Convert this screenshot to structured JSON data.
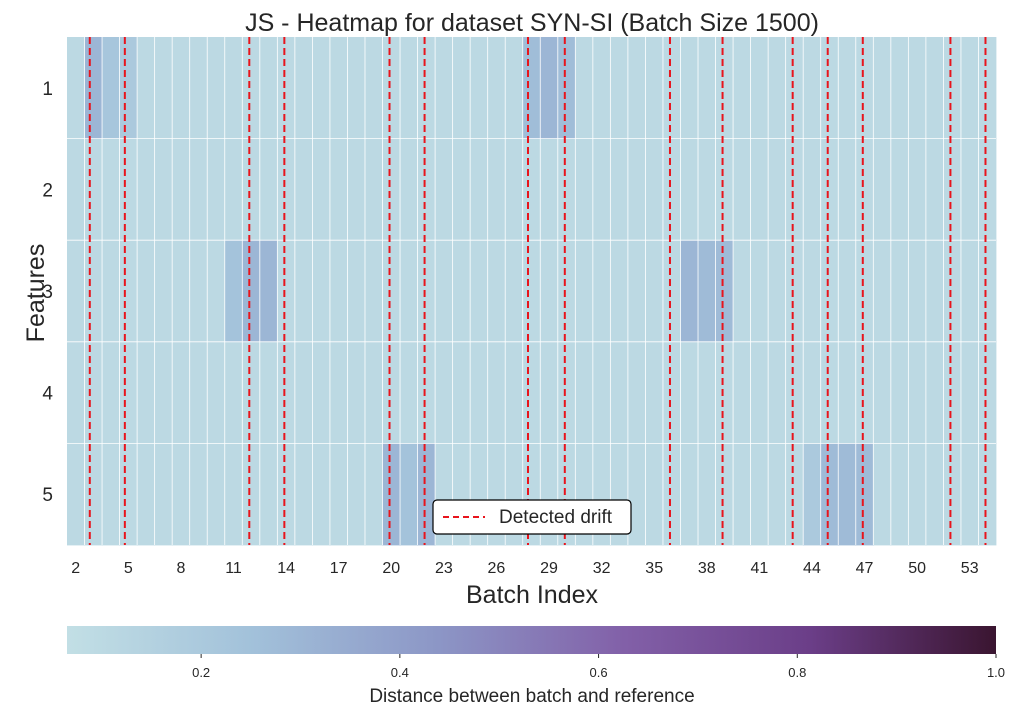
{
  "chart_data": {
    "type": "heatmap",
    "title": "JS - Heatmap for dataset SYN-SI (Batch Size 1500)",
    "xlabel": "Batch Index",
    "ylabel": "Features",
    "x_start": 2,
    "x_end": 54,
    "x_tick_labels": [
      "2",
      "5",
      "8",
      "11",
      "14",
      "17",
      "20",
      "23",
      "26",
      "29",
      "32",
      "35",
      "38",
      "41",
      "44",
      "47",
      "50",
      "53"
    ],
    "y_categories": [
      "1",
      "2",
      "3",
      "4",
      "5"
    ],
    "base_value": 0.1,
    "highlights": [
      {
        "feature": "1",
        "batches": [
          3
        ],
        "value": 0.3
      },
      {
        "feature": "1",
        "batches": [
          4
        ],
        "value": 0.22
      },
      {
        "feature": "1",
        "batches": [
          5
        ],
        "value": 0.2
      },
      {
        "feature": "1",
        "batches": [
          28,
          30
        ],
        "value": 0.27
      },
      {
        "feature": "1",
        "batches": [
          29
        ],
        "value": 0.3
      },
      {
        "feature": "3",
        "batches": [
          11
        ],
        "value": 0.24
      },
      {
        "feature": "3",
        "batches": [
          12,
          13
        ],
        "value": 0.3
      },
      {
        "feature": "3",
        "batches": [
          37
        ],
        "value": 0.3
      },
      {
        "feature": "3",
        "batches": [
          38,
          39
        ],
        "value": 0.28
      },
      {
        "feature": "5",
        "batches": [
          20,
          22
        ],
        "value": 0.3
      },
      {
        "feature": "5",
        "batches": [
          21
        ],
        "value": 0.24
      },
      {
        "feature": "5",
        "batches": [
          44
        ],
        "value": 0.2
      },
      {
        "feature": "5",
        "batches": [
          45,
          46,
          47
        ],
        "value": 0.28
      }
    ],
    "drift_lines": [
      2.8,
      4.8,
      11.9,
      13.9,
      19.9,
      21.9,
      27.8,
      29.9,
      35.9,
      38.9,
      42.9,
      44.9,
      46.9,
      51.9,
      53.9
    ],
    "legend": {
      "label": "Detected drift",
      "position": "lower-center"
    },
    "colorbar": {
      "label": "Distance between batch and reference",
      "range": [
        0.065,
        1.0
      ],
      "ticks": [
        "0.2",
        "0.4",
        "0.6",
        "0.8",
        "1.0"
      ],
      "orientation": "horizontal"
    },
    "colors": {
      "cmap_stops": [
        "#c2dfe5",
        "#a2c1da",
        "#8c96c6",
        "#8260a8",
        "#6b3e88",
        "#3a1530"
      ],
      "drift_line": "#e8141c",
      "grid": "#ffffff"
    }
  }
}
